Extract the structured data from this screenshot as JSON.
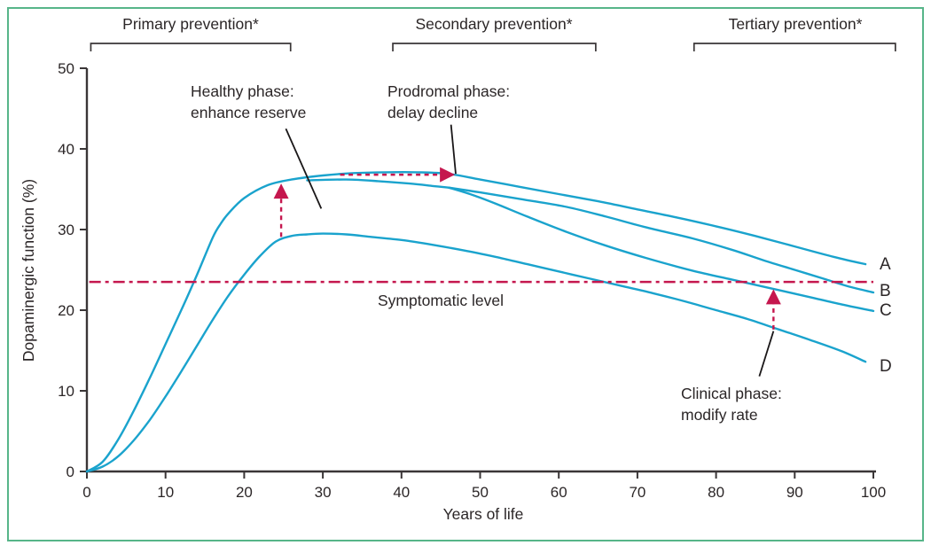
{
  "figure": {
    "border_color": "#57B589",
    "background_color": "#FFFFFF",
    "curve_color": "#1AA3CD",
    "accent_color": "#C5174E",
    "text_color": "#2B2627",
    "axis_color": "#3A3637"
  },
  "chart_data": {
    "type": "line",
    "xlabel": "Years of life",
    "ylabel": "Dopaminergic function (%)",
    "xlim": [
      0,
      100
    ],
    "ylim": [
      0,
      50
    ],
    "x_ticks": [
      0,
      10,
      20,
      30,
      40,
      50,
      60,
      70,
      80,
      90,
      100
    ],
    "y_ticks": [
      0,
      10,
      20,
      30,
      40,
      50
    ],
    "grid": false,
    "series": [
      {
        "name": "A",
        "points": [
          [
            0,
            0
          ],
          [
            2,
            1.2
          ],
          [
            4,
            4
          ],
          [
            6,
            7.6
          ],
          [
            8,
            11.6
          ],
          [
            10,
            15.8
          ],
          [
            12,
            20
          ],
          [
            14,
            24.4
          ],
          [
            16,
            29
          ],
          [
            17,
            30.7
          ],
          [
            18,
            32
          ],
          [
            20,
            33.9
          ],
          [
            23,
            35.5
          ],
          [
            26,
            36.2
          ],
          [
            30,
            36.7
          ],
          [
            34,
            37
          ],
          [
            38,
            37.1
          ],
          [
            42,
            37.1
          ],
          [
            46,
            36.9
          ],
          [
            50,
            36.2
          ],
          [
            55,
            35.3
          ],
          [
            60,
            34.4
          ],
          [
            65,
            33.5
          ],
          [
            70,
            32.5
          ],
          [
            75,
            31.5
          ],
          [
            80,
            30.4
          ],
          [
            85,
            29.2
          ],
          [
            90,
            27.9
          ],
          [
            95,
            26.6
          ],
          [
            99,
            25.7
          ]
        ]
      },
      {
        "name": "B",
        "points": [
          [
            28,
            36.1
          ],
          [
            33,
            36.2
          ],
          [
            37,
            36
          ],
          [
            41,
            35.7
          ],
          [
            44,
            35.4
          ],
          [
            46,
            35.2
          ],
          [
            50,
            34.6
          ],
          [
            55,
            33.8
          ],
          [
            61,
            32.8
          ],
          [
            66,
            31.6
          ],
          [
            71,
            30.3
          ],
          [
            77,
            28.9
          ],
          [
            82,
            27.5
          ],
          [
            86,
            26.2
          ],
          [
            90,
            25
          ],
          [
            94,
            23.8
          ],
          [
            97,
            22.9
          ],
          [
            100,
            22.2
          ]
        ]
      },
      {
        "name": "C",
        "points": [
          [
            46,
            35.2
          ],
          [
            49,
            34.3
          ],
          [
            52,
            33.2
          ],
          [
            56,
            31.6
          ],
          [
            61,
            29.7
          ],
          [
            66,
            28
          ],
          [
            71,
            26.5
          ],
          [
            77,
            24.9
          ],
          [
            82,
            23.8
          ],
          [
            87,
            22.7
          ],
          [
            92,
            21.6
          ],
          [
            96,
            20.7
          ],
          [
            100,
            19.9
          ]
        ]
      },
      {
        "name": "D",
        "points": [
          [
            0,
            0
          ],
          [
            2,
            0.6
          ],
          [
            4,
            1.9
          ],
          [
            6,
            3.9
          ],
          [
            8,
            6.4
          ],
          [
            10,
            9.3
          ],
          [
            12,
            12.4
          ],
          [
            14,
            15.6
          ],
          [
            16,
            18.8
          ],
          [
            18,
            21.8
          ],
          [
            20,
            24.4
          ],
          [
            22,
            26.7
          ],
          [
            24,
            28.5
          ],
          [
            26,
            29.2
          ],
          [
            28,
            29.4
          ],
          [
            30,
            29.5
          ],
          [
            33,
            29.4
          ],
          [
            36,
            29.1
          ],
          [
            40,
            28.7
          ],
          [
            44,
            28.1
          ],
          [
            48,
            27.4
          ],
          [
            52,
            26.6
          ],
          [
            56,
            25.7
          ],
          [
            60,
            24.8
          ],
          [
            64,
            23.9
          ],
          [
            68,
            23
          ],
          [
            72,
            22.1
          ],
          [
            76,
            21.1
          ],
          [
            80,
            20
          ],
          [
            84,
            18.9
          ],
          [
            88,
            17.6
          ],
          [
            92,
            16.3
          ],
          [
            96,
            14.9
          ],
          [
            99,
            13.6
          ]
        ]
      }
    ],
    "symptomatic_level": {
      "label": "Symptomatic level",
      "value": 23.5,
      "from_year": 0.3,
      "to_year": 100
    },
    "prevention_brackets": [
      {
        "label": "Primary prevention*",
        "from_year": 0.5,
        "to_year": 25.9
      },
      {
        "label": "Secondary prevention*",
        "from_year": 38.9,
        "to_year": 64.7
      },
      {
        "label": "Tertiary prevention*",
        "from_year": 77.2,
        "to_year": 102.8
      }
    ],
    "phase_annotations": [
      {
        "name": "healthy",
        "line1": "Healthy phase:",
        "line2": "enhance reserve",
        "pointer": [
          [
            25.3,
            42.5
          ],
          [
            29.8,
            32.6
          ]
        ]
      },
      {
        "name": "prodromal",
        "line1": "Prodromal phase:",
        "line2": "delay decline",
        "pointer": [
          [
            46.3,
            43.0
          ],
          [
            46.9,
            36.9
          ]
        ]
      },
      {
        "name": "clinical",
        "line1": "Clinical phase:",
        "line2": "modify rate",
        "pointer": [
          [
            85.5,
            11.8
          ],
          [
            87.3,
            17.4
          ]
        ]
      }
    ],
    "arrows": [
      {
        "name": "enhance-reserve-arrow",
        "direction": "up",
        "year": 24.7,
        "from_value": 29.1,
        "to_value": 35.7
      },
      {
        "name": "delay-decline-arrow",
        "direction": "right",
        "value": 36.8,
        "from_year": 32.2,
        "to_year": 46.8
      },
      {
        "name": "modify-rate-arrow",
        "direction": "up",
        "year": 87.3,
        "from_value": 17.6,
        "to_value": 22.6
      }
    ]
  }
}
